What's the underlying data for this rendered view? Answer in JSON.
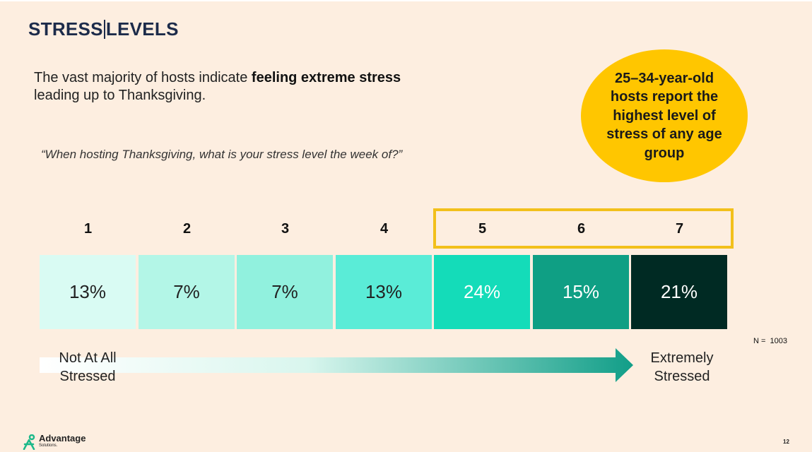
{
  "title_left": "STRESS",
  "title_right": "LEVELS",
  "intro": {
    "plain": "The vast majority of hosts indicate ",
    "bold": "feeling extreme stress",
    "tail": "leading up to Thanksgiving."
  },
  "question": "“When hosting Thanksgiving, what is your stress level the week of?”",
  "callout": "25–34-year-old hosts report the highest level of stress of any age group",
  "chart_data": {
    "type": "bar",
    "categories": [
      "1",
      "2",
      "3",
      "4",
      "5",
      "6",
      "7"
    ],
    "values": [
      13,
      7,
      7,
      13,
      24,
      15,
      21
    ],
    "value_labels": [
      "13%",
      "7%",
      "7%",
      "13%",
      "24%",
      "15%",
      "21%"
    ],
    "highlighted_categories": [
      "5",
      "6",
      "7"
    ],
    "cell_colors": [
      "#d9fbf3",
      "#b3f6e7",
      "#91f1de",
      "#5aecd7",
      "#14dcb9",
      "#0f9f84",
      "#002a23"
    ],
    "text_colors": [
      "#222222",
      "#222222",
      "#222222",
      "#222222",
      "#ffffff",
      "#ffffff",
      "#ffffff"
    ],
    "highlight_color": "#f2c01b"
  },
  "n_label": "N =  1003",
  "scale_low": [
    "Not At All",
    "Stressed"
  ],
  "scale_high": [
    "Extremely",
    "Stressed"
  ],
  "logo": {
    "name": "Advantage",
    "sub": "Solutions."
  },
  "page_number": "12",
  "colors": {
    "background": "#fdeee0",
    "title": "#1c2b4a",
    "callout": "#ffc600",
    "arrow": "#119e88"
  }
}
